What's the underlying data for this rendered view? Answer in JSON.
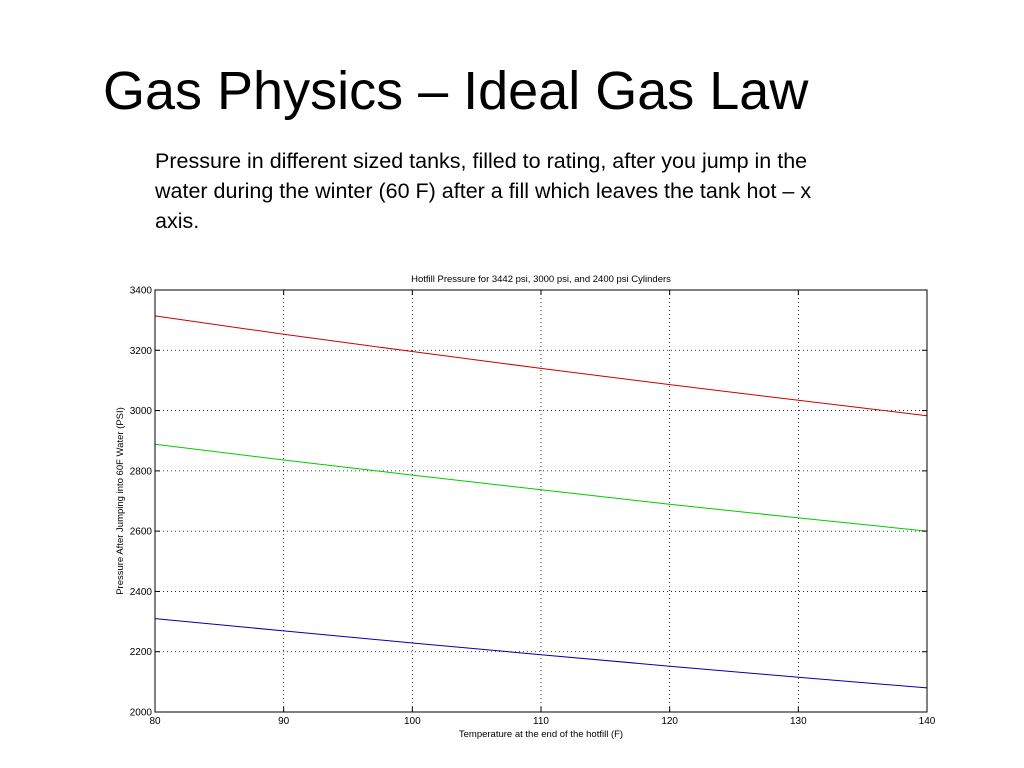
{
  "slide": {
    "title": "Gas Physics – Ideal Gas Law",
    "subtitle": "Pressure in different sized tanks, filled to rating, after you jump in the water during the winter (60 F) after a fill which leaves the tank hot – x axis."
  },
  "chart_data": {
    "type": "line",
    "title": "Hotfill Pressure for 3442 psi, 3000 psi, and 2400 psi Cylinders",
    "xlabel": "Temperature at the end of the hotfill (F)",
    "ylabel": "Pressure After Jumping into 60F Water (PSI)",
    "xlim": [
      80,
      140
    ],
    "ylim": [
      2000,
      3400
    ],
    "xticks": [
      80,
      90,
      100,
      110,
      120,
      130,
      140
    ],
    "yticks": [
      2000,
      2200,
      2400,
      2600,
      2800,
      3000,
      3200,
      3400
    ],
    "grid": true,
    "x": [
      80,
      90,
      100,
      110,
      120,
      130,
      140
    ],
    "series": [
      {
        "values": [
          3314,
          3253,
          3196,
          3140,
          3086,
          3034,
          2983
        ],
        "color": "#cc0000"
      },
      {
        "values": [
          2888,
          2836,
          2786,
          2737,
          2689,
          2644,
          2600
        ],
        "color": "#00cc00"
      },
      {
        "values": [
          2310,
          2269,
          2229,
          2190,
          2152,
          2115,
          2080
        ],
        "color": "#0000aa"
      }
    ]
  }
}
